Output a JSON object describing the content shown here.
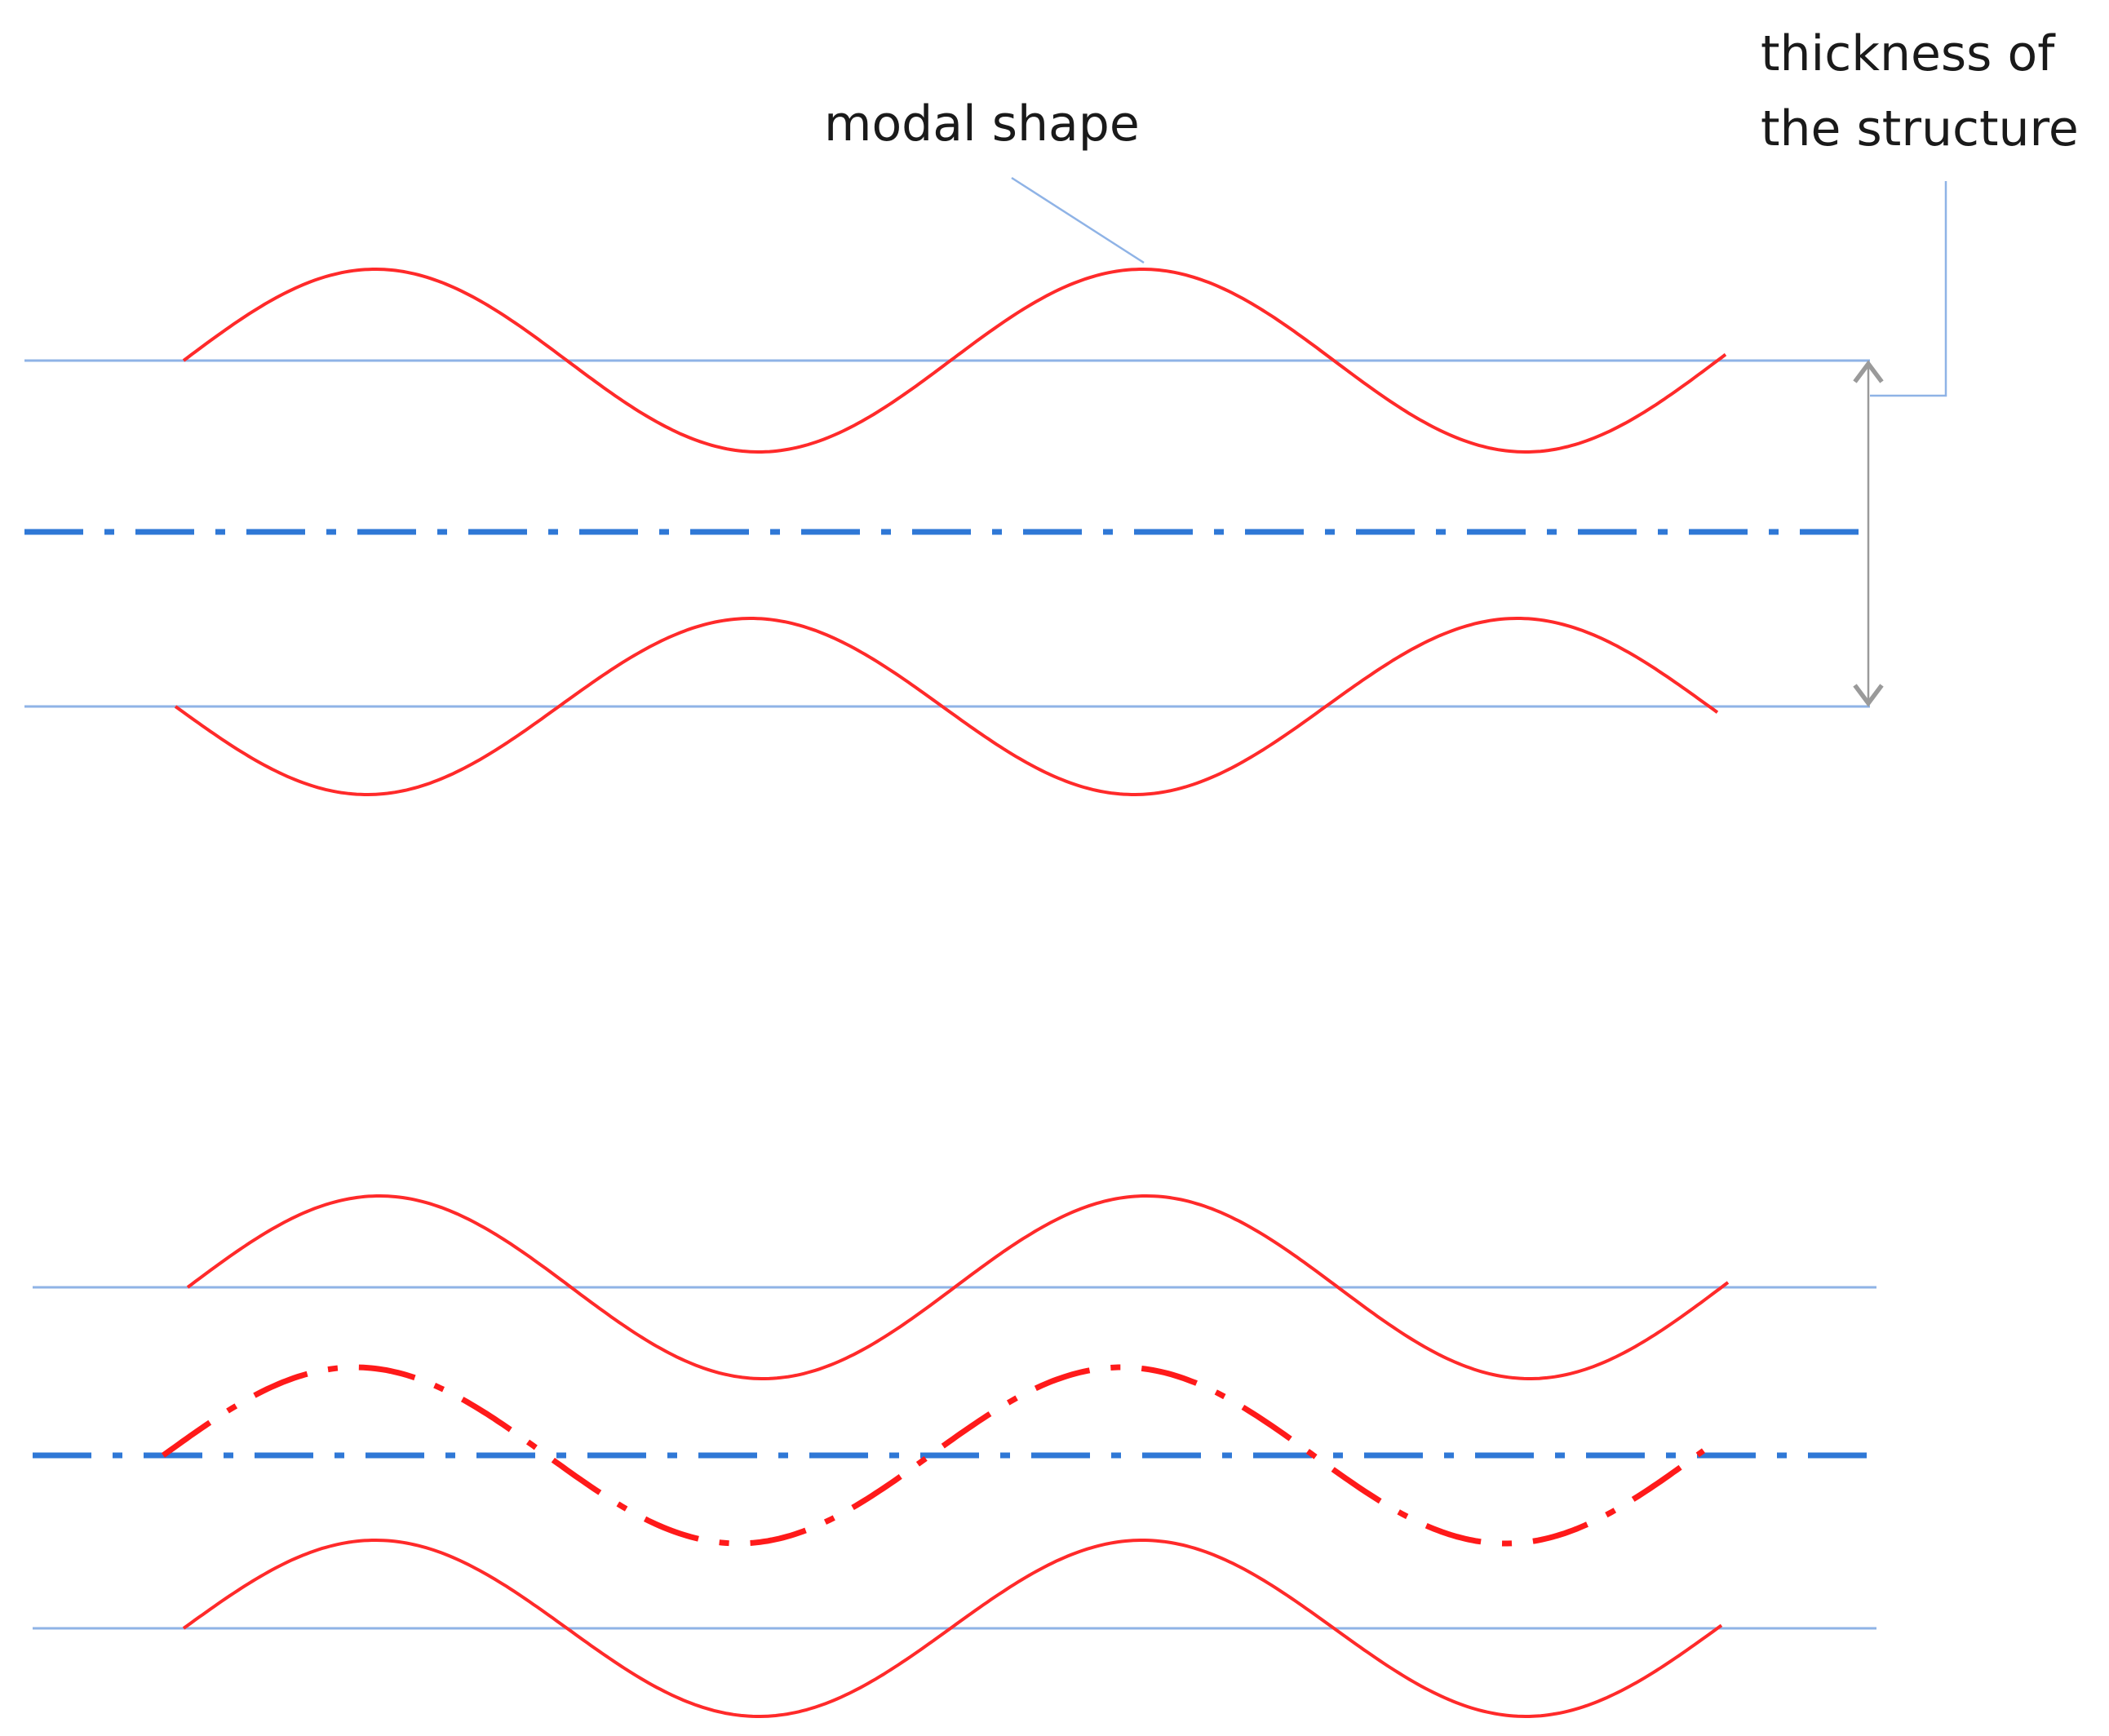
{
  "labels": {
    "modal_shape": "modal shape",
    "thickness_line1": "thickness of",
    "thickness_line2": "the structure"
  },
  "colors": {
    "modal_curve": "#ff2a2a",
    "surface_line": "#8fb3e6",
    "mid_plane": "#2f78d6",
    "dimension_arrow": "#9a9a9a"
  }
}
